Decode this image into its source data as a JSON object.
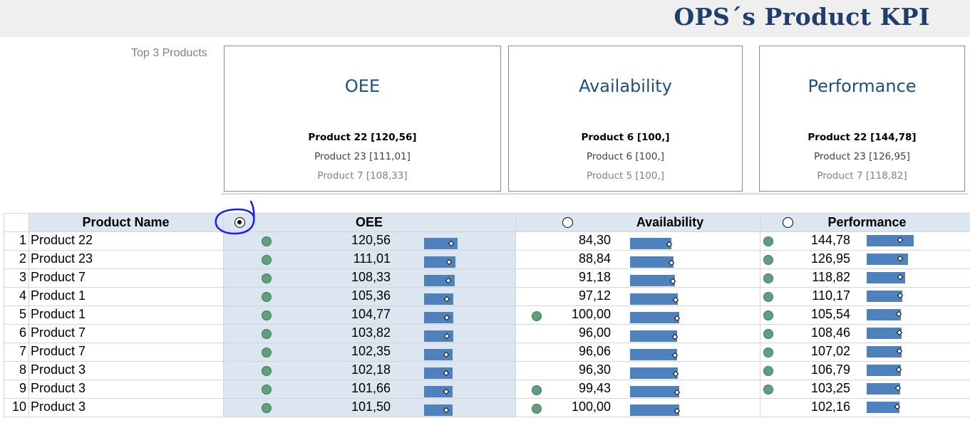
{
  "title": "OPS´s Product KPI",
  "top3_label": "Top 3 Products",
  "cards": [
    {
      "title": "OEE",
      "lines": [
        "Product 22 [120,56]",
        "Product 23 [111,01]",
        "Product 7 [108,33]"
      ]
    },
    {
      "title": "Availability",
      "lines": [
        "Product 6 [100,]",
        "Product 6 [100,]",
        "Product 5 [100,]"
      ]
    },
    {
      "title": "Performance",
      "lines": [
        "Product 22 [144,78]",
        "Product 23 [126,95]",
        "Product 7 [118,82]"
      ]
    }
  ],
  "table": {
    "headers": {
      "name": "Product Name",
      "oee": "OEE",
      "availability": "Availability",
      "performance": "Performance"
    },
    "selected_metric": "OEE",
    "rows": [
      {
        "n": "1",
        "name": "Product 22",
        "oee": "120,56",
        "avail": "84,30",
        "perf": "144,78",
        "oee_dot": true,
        "avail_dot": false,
        "perf_dot": true
      },
      {
        "n": "2",
        "name": "Product 23",
        "oee": "111,01",
        "avail": "88,84",
        "perf": "126,95",
        "oee_dot": true,
        "avail_dot": false,
        "perf_dot": true
      },
      {
        "n": "3",
        "name": "Product 7",
        "oee": "108,33",
        "avail": "91,18",
        "perf": "118,82",
        "oee_dot": true,
        "avail_dot": false,
        "perf_dot": true
      },
      {
        "n": "4",
        "name": "Product 1",
        "oee": "105,36",
        "avail": "97,12",
        "perf": "110,17",
        "oee_dot": true,
        "avail_dot": false,
        "perf_dot": true
      },
      {
        "n": "5",
        "name": "Product 1",
        "oee": "104,77",
        "avail": "100,00",
        "perf": "105,54",
        "oee_dot": true,
        "avail_dot": true,
        "perf_dot": true
      },
      {
        "n": "6",
        "name": "Product 7",
        "oee": "103,82",
        "avail": "96,00",
        "perf": "108,46",
        "oee_dot": true,
        "avail_dot": false,
        "perf_dot": true
      },
      {
        "n": "7",
        "name": "Product 7",
        "oee": "102,35",
        "avail": "96,06",
        "perf": "107,02",
        "oee_dot": true,
        "avail_dot": false,
        "perf_dot": true
      },
      {
        "n": "8",
        "name": "Product 3",
        "oee": "102,18",
        "avail": "96,30",
        "perf": "106,79",
        "oee_dot": true,
        "avail_dot": false,
        "perf_dot": true
      },
      {
        "n": "9",
        "name": "Product 3",
        "oee": "101,66",
        "avail": "99,43",
        "perf": "103,25",
        "oee_dot": true,
        "avail_dot": true,
        "perf_dot": true
      },
      {
        "n": "10",
        "name": "Product 3",
        "oee": "101,50",
        "avail": "100,00",
        "perf": "102,16",
        "oee_dot": true,
        "avail_dot": true,
        "perf_dot": false
      }
    ]
  },
  "colors": {
    "accent": "#1f3e6a",
    "bar": "#4f81bd",
    "dot": "#5f9f7c",
    "selected_column": "#dce6f1",
    "header": "#dce6f1"
  }
}
